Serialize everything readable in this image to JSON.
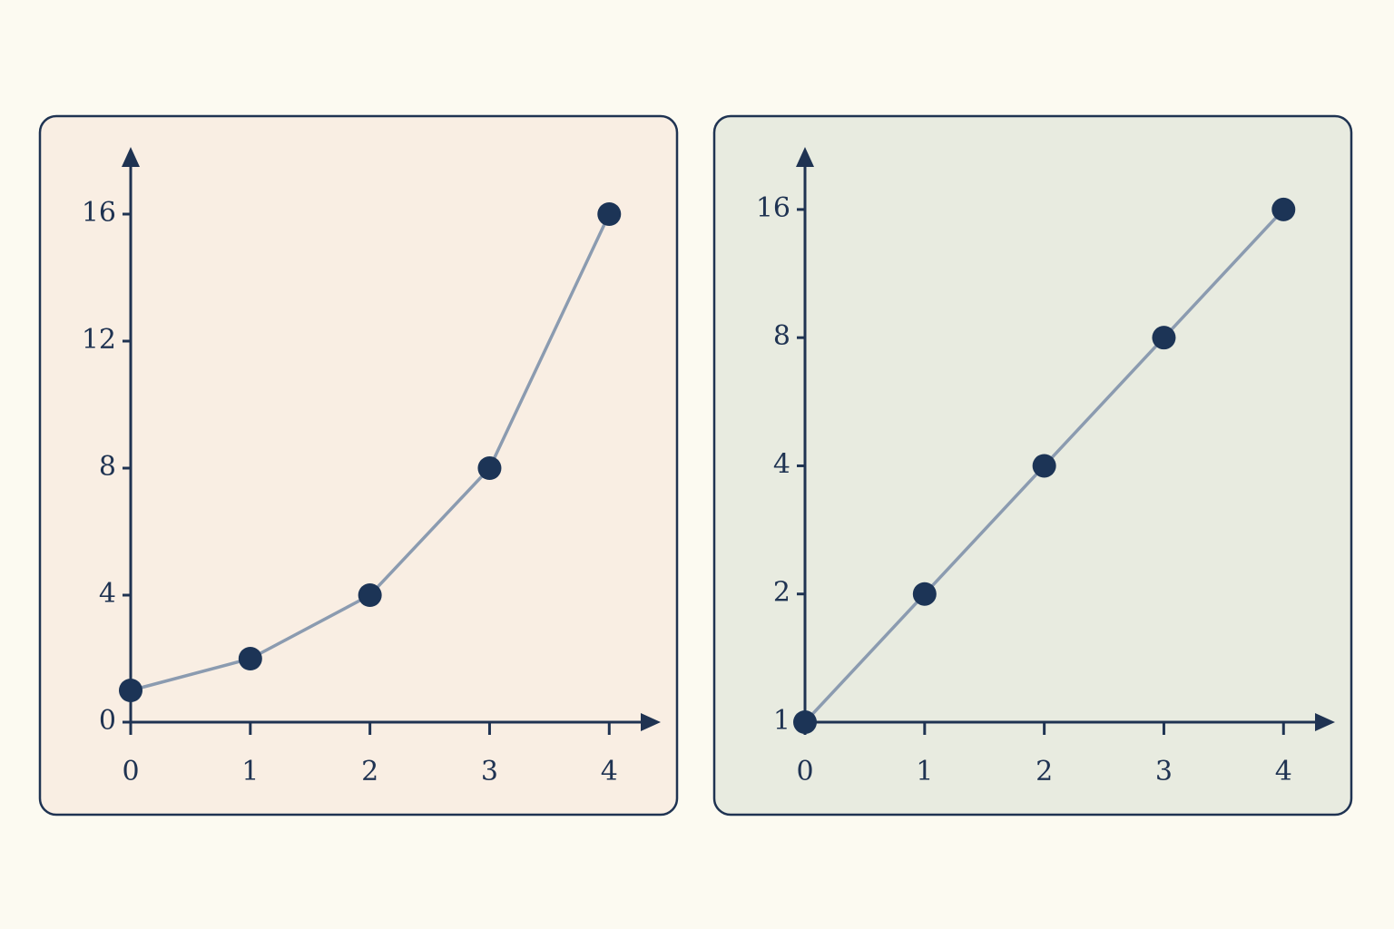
{
  "chart_data": [
    {
      "type": "line",
      "background": "#f9eee3",
      "x": [
        0,
        1,
        2,
        3,
        4
      ],
      "xlim": [
        0,
        4.4
      ],
      "xticks": [
        0,
        1,
        2,
        3,
        4
      ],
      "ylim": [
        0,
        18
      ],
      "yticks": [
        0,
        4,
        8,
        12,
        16
      ],
      "log_scale": false,
      "series": [
        {
          "color": "#8b9bb0",
          "marker_color": "#1c3456",
          "values": [
            1,
            2,
            4,
            8,
            16
          ]
        }
      ]
    },
    {
      "type": "line",
      "background": "#e8ebe0",
      "x": [
        0,
        1,
        2,
        3,
        4
      ],
      "xlim": [
        0,
        4.4
      ],
      "xticks": [
        0,
        1,
        2,
        3,
        4
      ],
      "ylim": [
        1,
        22
      ],
      "yticks": [
        1,
        2,
        4,
        8,
        16
      ],
      "log_scale": true,
      "series": [
        {
          "color": "#8b9bb0",
          "marker_color": "#1c3456",
          "values": [
            1,
            2,
            4,
            8,
            16
          ]
        }
      ]
    }
  ]
}
